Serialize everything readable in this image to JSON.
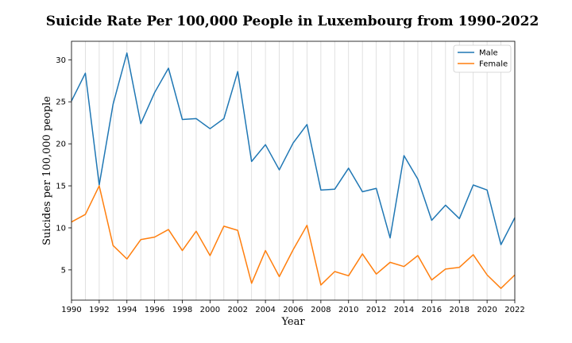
{
  "chart_data": {
    "type": "line",
    "title": "Suicide Rate Per 100,000 People in Luxembourg from 1990-2022",
    "xlabel": "Year",
    "ylabel": "Suicides per 100,000 people",
    "x": [
      1990,
      1991,
      1992,
      1993,
      1994,
      1995,
      1996,
      1997,
      1998,
      1999,
      2000,
      2001,
      2002,
      2003,
      2004,
      2005,
      2006,
      2007,
      2008,
      2009,
      2010,
      2011,
      2012,
      2013,
      2014,
      2015,
      2016,
      2017,
      2018,
      2019,
      2020,
      2021,
      2022
    ],
    "xlim": [
      1990,
      2022
    ],
    "ylim": [
      1.4,
      32.2
    ],
    "xticks": [
      "1990",
      "1992",
      "1994",
      "1996",
      "1998",
      "2000",
      "2002",
      "2004",
      "2006",
      "2008",
      "2010",
      "2012",
      "2014",
      "2016",
      "2018",
      "2020",
      "2022"
    ],
    "yticks": [
      "5",
      "10",
      "15",
      "20",
      "25",
      "30"
    ],
    "grid": "vertical",
    "legend_position": "top-right",
    "series": [
      {
        "name": "Male",
        "color": "#1f77b4",
        "values": [
          25.1,
          28.4,
          15.1,
          24.7,
          30.8,
          22.4,
          26.1,
          29.0,
          22.9,
          23.0,
          21.8,
          23.0,
          28.6,
          17.9,
          19.9,
          16.9,
          20.1,
          22.3,
          14.5,
          14.6,
          17.1,
          14.3,
          14.7,
          8.8,
          18.6,
          15.8,
          10.9,
          12.7,
          11.1,
          15.1,
          14.5,
          8.0,
          11.2
        ]
      },
      {
        "name": "Female",
        "color": "#ff7f0e",
        "values": [
          10.7,
          11.6,
          15.0,
          7.9,
          6.3,
          8.6,
          8.9,
          9.8,
          7.3,
          9.6,
          6.7,
          10.2,
          9.7,
          3.4,
          7.3,
          4.2,
          7.4,
          10.3,
          3.2,
          4.8,
          4.3,
          6.9,
          4.5,
          5.9,
          5.4,
          6.7,
          3.8,
          5.1,
          5.3,
          6.8,
          4.4,
          2.8,
          4.4
        ]
      }
    ]
  }
}
